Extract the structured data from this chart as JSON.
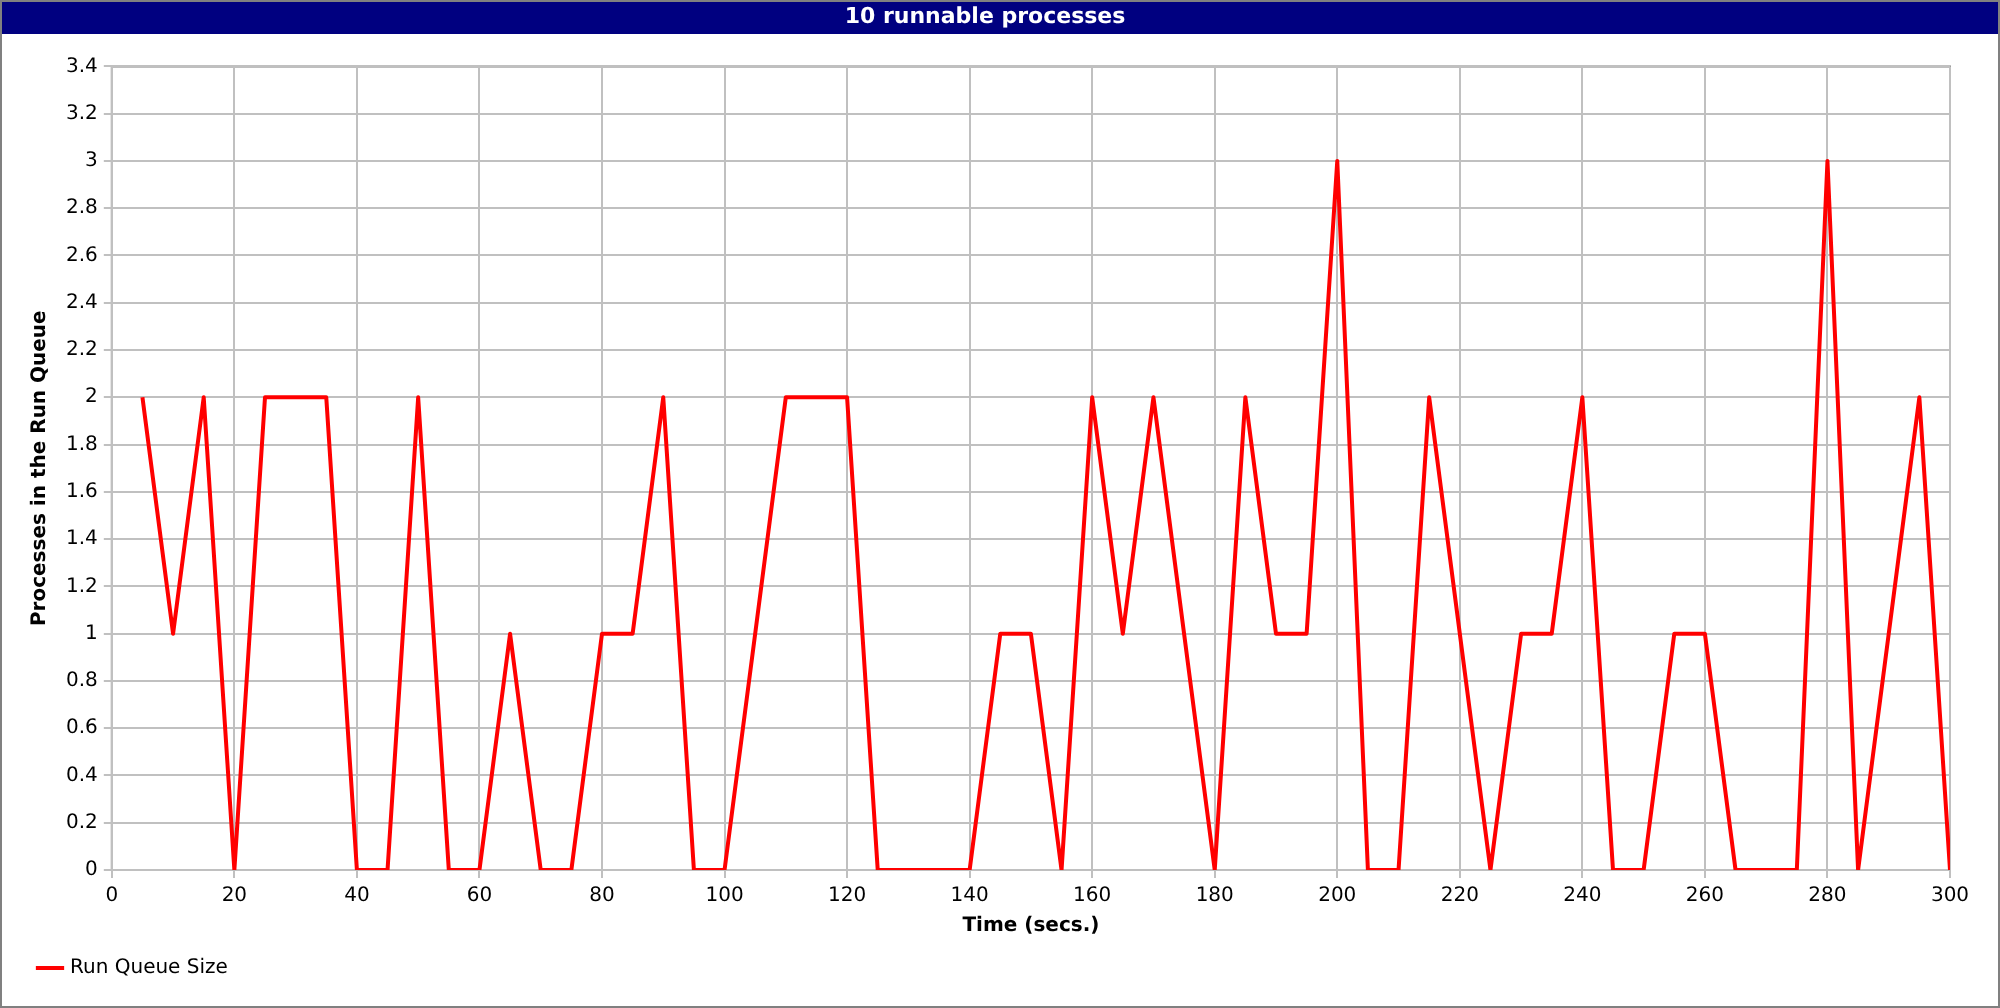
{
  "chart_data": {
    "type": "line",
    "title": "10 runnable processes",
    "xlabel": "Time (secs.)",
    "ylabel": "Processes in the Run Queue",
    "x": [
      5,
      10,
      15,
      20,
      25,
      30,
      35,
      40,
      45,
      50,
      55,
      60,
      65,
      70,
      75,
      80,
      85,
      90,
      95,
      100,
      105,
      110,
      115,
      120,
      125,
      130,
      135,
      140,
      145,
      150,
      155,
      160,
      165,
      170,
      175,
      180,
      185,
      190,
      195,
      200,
      205,
      210,
      215,
      220,
      225,
      230,
      235,
      240,
      245,
      250,
      255,
      260,
      265,
      270,
      275,
      280,
      285,
      290,
      295,
      300
    ],
    "series": [
      {
        "name": "Run Queue Size",
        "color": "#ff0000",
        "values": [
          2,
          1,
          2,
          0,
          2,
          2,
          2,
          0,
          0,
          2,
          0,
          0,
          1,
          0,
          0,
          1,
          1,
          2,
          0,
          0,
          1,
          2,
          2,
          2,
          0,
          0,
          0,
          0,
          1,
          1,
          0,
          2,
          1,
          2,
          1,
          0,
          2,
          1,
          1,
          3,
          0,
          0,
          2,
          1,
          0,
          1,
          1,
          2,
          0,
          0,
          1,
          1,
          0,
          0,
          0,
          3,
          0,
          1,
          2,
          0
        ]
      }
    ],
    "xlim": [
      0,
      300
    ],
    "xticks": [
      0,
      20,
      40,
      60,
      80,
      100,
      120,
      140,
      160,
      180,
      200,
      220,
      240,
      260,
      280,
      300
    ],
    "ylim": [
      0,
      3.4
    ],
    "yticks": [
      0,
      0.2,
      0.4,
      0.6,
      0.8,
      1,
      1.2,
      1.4,
      1.6,
      1.8,
      2,
      2.2,
      2.4,
      2.6,
      2.8,
      3,
      3.2,
      3.4
    ],
    "grid": true,
    "legend": "bottom left",
    "marker": "none",
    "line_style": "solid"
  }
}
